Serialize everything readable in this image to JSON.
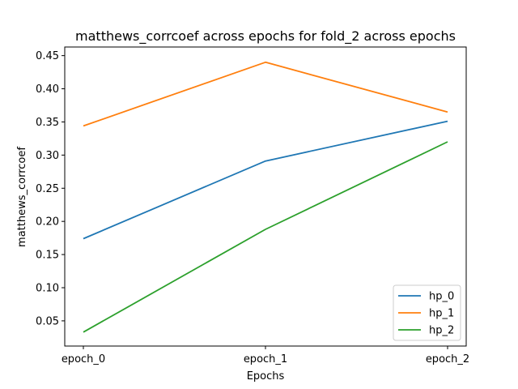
{
  "chart_data": {
    "type": "line",
    "title": "matthews_corrcoef across epochs for fold_2 across epochs",
    "xlabel": "Epochs",
    "ylabel": "matthews_corrcoef",
    "categories": [
      "epoch_0",
      "epoch_1",
      "epoch_2"
    ],
    "ylim": [
      0.012,
      0.463
    ],
    "yticks": [
      "0.05",
      "0.10",
      "0.15",
      "0.20",
      "0.25",
      "0.30",
      "0.35",
      "0.40",
      "0.45"
    ],
    "grid": false,
    "legend_position": "lower-right",
    "series": [
      {
        "name": "hp_0",
        "color": "#1f77b4",
        "values": [
          0.174,
          0.291,
          0.351
        ]
      },
      {
        "name": "hp_1",
        "color": "#ff7f0e",
        "values": [
          0.344,
          0.44,
          0.365
        ]
      },
      {
        "name": "hp_2",
        "color": "#2ca02c",
        "values": [
          0.033,
          0.188,
          0.32
        ]
      }
    ]
  }
}
